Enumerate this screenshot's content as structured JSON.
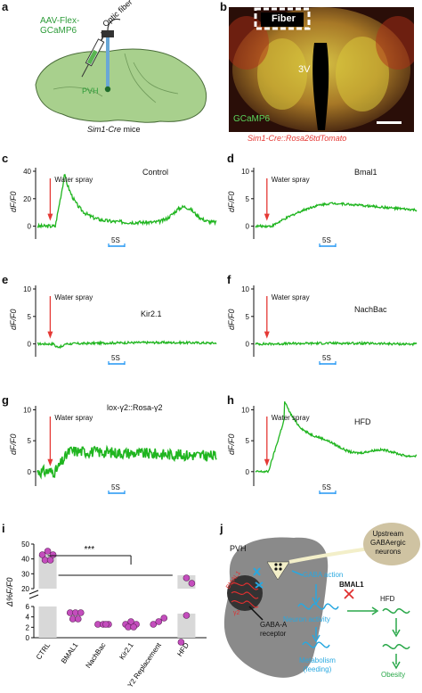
{
  "labels": {
    "a": "a",
    "b": "b",
    "c": "c",
    "d": "d",
    "e": "e",
    "f": "f",
    "g": "g",
    "h": "h",
    "i": "i",
    "j": "j"
  },
  "panel_a": {
    "virus": "AAV-Flex-\nGCaMP6",
    "virus_l1": "AAV-Flex-",
    "virus_l2": "GCaMP6",
    "fiber": "Optic fiber",
    "pvh": "PVH",
    "mice_italic": "Sim1-Cre",
    "mice_rest": " mice"
  },
  "panel_b": {
    "fiber": "Fiber",
    "ventricle": "3V",
    "gcamp": "GCaMP6",
    "caption": "Sim1-Cre::Rosa26tdTomato"
  },
  "traces": {
    "ylabel": "dF/F0",
    "stim": "Water spray",
    "scale": "5S",
    "c": {
      "title": "Control",
      "ticks": [
        "40",
        "20",
        "0"
      ]
    },
    "d": {
      "title": "Bmal1",
      "ticks": [
        "10",
        "5",
        "0"
      ]
    },
    "e": {
      "title": "Kir2.1",
      "ticks": [
        "10",
        "5",
        "0"
      ]
    },
    "f": {
      "title": "NachBac",
      "ticks": [
        "10",
        "5",
        "0"
      ]
    },
    "g": {
      "title": "lox-γ2::Rosa-γ2",
      "ticks": [
        "10",
        "5",
        "0"
      ]
    },
    "h": {
      "title": "HFD",
      "ticks": [
        "10",
        "5",
        "0"
      ]
    }
  },
  "panel_i": {
    "ylabel": "Δ%F/F0",
    "significance": "***",
    "yticks_top": [
      "50",
      "40",
      "30",
      "20"
    ],
    "yticks_bottom": [
      "6",
      "4",
      "2",
      "0"
    ],
    "categories": [
      "CTRL",
      "BMAL1",
      "NachBac",
      "Kir2.1",
      "Y2 Replacement",
      "HFD"
    ],
    "colors": {
      "bar": "#d8d8d8",
      "dot": "#c44dbd"
    }
  },
  "panel_j": {
    "pvh": "PVH",
    "upstream": "Upstream\nGABAergic\nneurons",
    "upstream_l1": "Upstream",
    "upstream_l2": "GABAergic",
    "upstream_l3": "neurons",
    "gaba_action": "GABA action",
    "bmal1_left": "BMAL1",
    "y2": "γ2",
    "receptor": "GABA-A\nreceptor",
    "receptor_l1": "GABA-A",
    "receptor_l2": "receptor",
    "bmal1_right": "BMAL1",
    "hfd": "HFD",
    "neuron_activity": "Neuron activity",
    "metabolism": "Metabolism\n(feeding)",
    "metabolism_l1": "Metabolism",
    "metabolism_l2": "(feeding)",
    "obesity": "Obesity",
    "colors": {
      "blue": "#29a8e0",
      "green": "#2aa84a",
      "red": "#e03030",
      "gray": "#8a8a8a"
    }
  },
  "colors": {
    "trace": "#1fb51f",
    "arrow": "#e53935",
    "scale": "#2196f3",
    "brain": "#a8d08d",
    "textgreen": "#2e9c3a",
    "red": "#e53935"
  }
}
